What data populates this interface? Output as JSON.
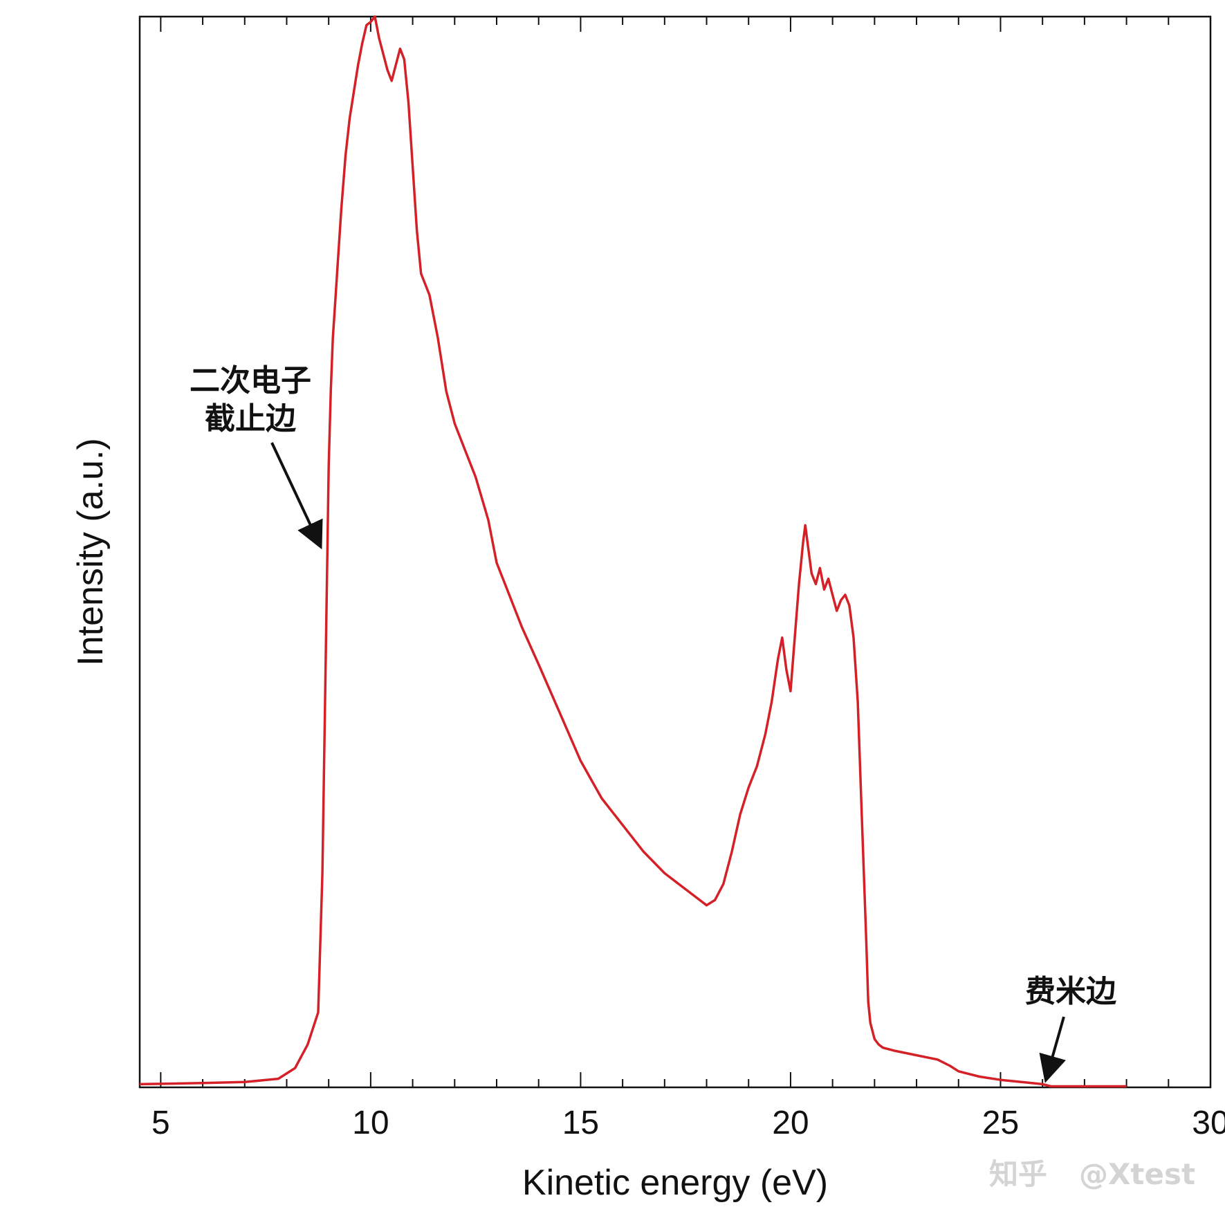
{
  "chart_data": {
    "type": "line",
    "xlabel": "Kinetic energy (eV)",
    "ylabel": "Intensity (a.u.)",
    "xlim": [
      4.5,
      30
    ],
    "ylim": [
      0,
      100
    ],
    "x_ticks": [
      5,
      10,
      15,
      20,
      25,
      30
    ],
    "y_ticks_labeled": false,
    "grid": false,
    "legend": "none",
    "series_color": "#d42027",
    "series": [
      {
        "x": [
          4.5,
          6.0,
          7.0,
          7.8,
          8.2,
          8.5,
          8.75,
          8.85,
          8.95,
          9.0,
          9.05,
          9.1,
          9.15,
          9.2,
          9.3,
          9.4,
          9.5,
          9.6,
          9.7,
          9.8,
          9.9,
          10.0,
          10.1,
          10.15,
          10.2,
          10.3,
          10.4,
          10.5,
          10.6,
          10.7,
          10.8,
          10.9,
          11.0,
          11.1,
          11.2,
          11.3,
          11.4,
          11.6,
          11.8,
          12.0,
          12.2,
          12.5,
          12.8,
          13.0,
          13.3,
          13.6,
          14.0,
          14.5,
          15.0,
          15.5,
          16.0,
          16.5,
          17.0,
          17.5,
          18.0,
          18.2,
          18.4,
          18.6,
          18.8,
          19.0,
          19.2,
          19.4,
          19.55,
          19.7,
          19.8,
          19.9,
          20.0,
          20.1,
          20.2,
          20.3,
          20.35,
          20.4,
          20.5,
          20.6,
          20.7,
          20.8,
          20.9,
          21.0,
          21.1,
          21.2,
          21.3,
          21.4,
          21.5,
          21.6,
          21.7,
          21.8,
          21.85,
          21.9,
          22.0,
          22.1,
          22.2,
          22.5,
          23.0,
          23.5,
          23.8,
          24.0,
          24.5,
          25.0,
          25.5,
          26.0,
          26.2,
          27.0,
          28.0
        ],
        "y": [
          0.3,
          0.4,
          0.5,
          0.8,
          1.8,
          4.0,
          7.0,
          20.0,
          45.0,
          58.0,
          65.0,
          70.0,
          73.0,
          76.0,
          82.0,
          87.0,
          90.5,
          93.0,
          95.5,
          97.5,
          99.2,
          99.5,
          100.0,
          99.0,
          98.0,
          96.5,
          95.0,
          94.0,
          95.5,
          97.0,
          96.0,
          92.0,
          86.0,
          80.0,
          76.0,
          75.0,
          74.0,
          70.0,
          65.0,
          62.0,
          60.0,
          57.0,
          53.0,
          49.0,
          46.0,
          43.0,
          39.5,
          35.0,
          30.5,
          27.0,
          24.5,
          22.0,
          20.0,
          18.5,
          17.0,
          17.5,
          19.0,
          22.0,
          25.5,
          28.0,
          30.0,
          33.0,
          36.0,
          40.0,
          42.0,
          39.0,
          37.0,
          42.0,
          47.0,
          51.0,
          52.5,
          51.0,
          48.0,
          47.0,
          48.5,
          46.5,
          47.5,
          46.0,
          44.5,
          45.5,
          46.0,
          45.0,
          42.0,
          36.0,
          25.0,
          14.0,
          8.0,
          6.0,
          4.5,
          4.0,
          3.7,
          3.4,
          3.0,
          2.6,
          2.0,
          1.5,
          1.0,
          0.7,
          0.5,
          0.3,
          0.1,
          0.1,
          0.1
        ]
      }
    ],
    "annotations": [
      {
        "text_line1": "二次电子",
        "text_line2": "截止边",
        "x": 9.0,
        "y": 52
      },
      {
        "text": "费米边",
        "x": 26.1,
        "y": 0.3
      }
    ]
  },
  "watermark": {
    "brand": "知乎",
    "handle": "@Xtest"
  }
}
